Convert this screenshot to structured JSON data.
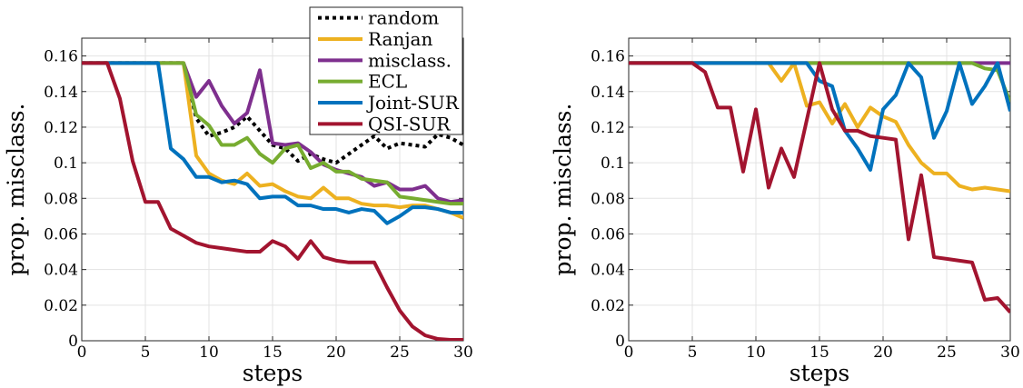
{
  "chart_data": [
    {
      "type": "line",
      "title": "",
      "xlabel": "steps",
      "ylabel": "prop. misclass.",
      "xlim": [
        0,
        30
      ],
      "ylim": [
        0,
        0.17
      ],
      "xticks": [
        0,
        5,
        10,
        15,
        20,
        25,
        30
      ],
      "yticks": [
        0,
        0.02,
        0.04,
        0.06,
        0.08,
        0.1,
        0.12,
        0.14,
        0.16
      ],
      "ytick_labels": [
        "0",
        "0.02",
        "0.04",
        "0.06",
        "0.08",
        "0.1",
        "0.12",
        "0.14",
        "0.16"
      ],
      "grid": true,
      "legend_position": "top-right",
      "x": [
        0,
        1,
        2,
        3,
        4,
        5,
        6,
        7,
        8,
        9,
        10,
        11,
        12,
        13,
        14,
        15,
        16,
        17,
        18,
        19,
        20,
        21,
        22,
        23,
        24,
        25,
        26,
        27,
        28,
        29,
        30
      ],
      "series": [
        {
          "name": "random",
          "color": "#000000",
          "dashed": true,
          "values": [
            0.156,
            0.156,
            0.156,
            0.156,
            0.156,
            0.156,
            0.156,
            0.156,
            0.156,
            0.125,
            0.115,
            0.117,
            0.12,
            0.126,
            0.118,
            0.11,
            0.108,
            0.101,
            0.105,
            0.102,
            0.1,
            0.105,
            0.11,
            0.115,
            0.108,
            0.111,
            0.11,
            0.109,
            0.116,
            0.114,
            0.11
          ]
        },
        {
          "name": "Ranjan",
          "color": "#EDB120",
          "values": [
            0.156,
            0.156,
            0.156,
            0.156,
            0.156,
            0.156,
            0.156,
            0.156,
            0.156,
            0.104,
            0.094,
            0.09,
            0.088,
            0.094,
            0.087,
            0.088,
            0.084,
            0.081,
            0.08,
            0.086,
            0.08,
            0.08,
            0.077,
            0.076,
            0.076,
            0.075,
            0.076,
            0.076,
            0.074,
            0.072,
            0.069
          ]
        },
        {
          "name": "misclass.",
          "color": "#7E2F8E",
          "values": [
            0.156,
            0.156,
            0.156,
            0.156,
            0.156,
            0.156,
            0.156,
            0.156,
            0.156,
            0.137,
            0.146,
            0.132,
            0.122,
            0.128,
            0.152,
            0.111,
            0.11,
            0.111,
            0.106,
            0.099,
            0.096,
            0.094,
            0.092,
            0.087,
            0.089,
            0.085,
            0.085,
            0.087,
            0.08,
            0.078,
            0.079
          ]
        },
        {
          "name": "ECL",
          "color": "#77AC30",
          "values": [
            0.156,
            0.156,
            0.156,
            0.156,
            0.156,
            0.156,
            0.156,
            0.156,
            0.156,
            0.127,
            0.121,
            0.11,
            0.11,
            0.114,
            0.105,
            0.1,
            0.108,
            0.11,
            0.097,
            0.1,
            0.095,
            0.095,
            0.091,
            0.09,
            0.089,
            0.081,
            0.08,
            0.079,
            0.078,
            0.077,
            0.077
          ]
        },
        {
          "name": "Joint-SUR",
          "color": "#0072BD",
          "values": [
            0.156,
            0.156,
            0.156,
            0.156,
            0.156,
            0.156,
            0.156,
            0.108,
            0.102,
            0.092,
            0.092,
            0.089,
            0.09,
            0.088,
            0.08,
            0.081,
            0.081,
            0.076,
            0.076,
            0.074,
            0.074,
            0.072,
            0.074,
            0.073,
            0.066,
            0.07,
            0.075,
            0.075,
            0.074,
            0.072,
            0.072
          ]
        },
        {
          "name": "QSI-SUR",
          "color": "#A2142F",
          "values": [
            0.156,
            0.156,
            0.156,
            0.136,
            0.101,
            0.078,
            0.078,
            0.063,
            0.059,
            0.055,
            0.053,
            0.052,
            0.051,
            0.05,
            0.05,
            0.056,
            0.053,
            0.046,
            0.056,
            0.047,
            0.045,
            0.044,
            0.044,
            0.044,
            0.03,
            0.017,
            0.008,
            0.003,
            0.001,
            0.0005,
            0.0005
          ]
        }
      ]
    },
    {
      "type": "line",
      "title": "",
      "xlabel": "steps",
      "ylabel": "prop. misclass.",
      "xlim": [
        0,
        30
      ],
      "ylim": [
        0,
        0.17
      ],
      "xticks": [
        0,
        5,
        10,
        15,
        20,
        25,
        30
      ],
      "yticks": [
        0,
        0.02,
        0.04,
        0.06,
        0.08,
        0.1,
        0.12,
        0.14,
        0.16
      ],
      "ytick_labels": [
        "0",
        "0.02",
        "0.04",
        "0.06",
        "0.08",
        "0.1",
        "0.12",
        "0.14",
        "0.16"
      ],
      "grid": true,
      "x": [
        0,
        1,
        2,
        3,
        4,
        5,
        6,
        7,
        8,
        9,
        10,
        11,
        12,
        13,
        14,
        15,
        16,
        17,
        18,
        19,
        20,
        21,
        22,
        23,
        24,
        25,
        26,
        27,
        28,
        29,
        30
      ],
      "series": [
        {
          "name": "Ranjan",
          "color": "#EDB120",
          "values": [
            0.156,
            0.156,
            0.156,
            0.156,
            0.156,
            0.156,
            0.156,
            0.156,
            0.156,
            0.156,
            0.156,
            0.156,
            0.146,
            0.156,
            0.132,
            0.134,
            0.122,
            0.133,
            0.12,
            0.131,
            0.126,
            0.123,
            0.11,
            0.1,
            0.094,
            0.094,
            0.087,
            0.085,
            0.086,
            0.085,
            0.084
          ]
        },
        {
          "name": "misclass.",
          "color": "#7E2F8E",
          "values": [
            0.156,
            0.156,
            0.156,
            0.156,
            0.156,
            0.156,
            0.156,
            0.156,
            0.156,
            0.156,
            0.156,
            0.156,
            0.156,
            0.156,
            0.156,
            0.156,
            0.156,
            0.156,
            0.156,
            0.156,
            0.156,
            0.156,
            0.156,
            0.156,
            0.156,
            0.156,
            0.156,
            0.156,
            0.156,
            0.156,
            0.156
          ]
        },
        {
          "name": "ECL",
          "color": "#77AC30",
          "values": [
            0.156,
            0.156,
            0.156,
            0.156,
            0.156,
            0.156,
            0.156,
            0.156,
            0.156,
            0.156,
            0.156,
            0.156,
            0.156,
            0.156,
            0.156,
            0.156,
            0.156,
            0.156,
            0.156,
            0.156,
            0.156,
            0.156,
            0.156,
            0.156,
            0.156,
            0.156,
            0.156,
            0.156,
            0.153,
            0.152,
            0.134
          ]
        },
        {
          "name": "Joint-SUR",
          "color": "#0072BD",
          "values": [
            0.156,
            0.156,
            0.156,
            0.156,
            0.156,
            0.156,
            0.156,
            0.156,
            0.156,
            0.156,
            0.156,
            0.156,
            0.156,
            0.156,
            0.156,
            0.146,
            0.143,
            0.118,
            0.108,
            0.096,
            0.13,
            0.138,
            0.156,
            0.148,
            0.114,
            0.129,
            0.156,
            0.133,
            0.143,
            0.156,
            0.129
          ]
        },
        {
          "name": "QSI-SUR",
          "color": "#A2142F",
          "values": [
            0.156,
            0.156,
            0.156,
            0.156,
            0.156,
            0.156,
            0.151,
            0.131,
            0.131,
            0.095,
            0.13,
            0.086,
            0.108,
            0.092,
            0.124,
            0.156,
            0.13,
            0.118,
            0.118,
            0.115,
            0.114,
            0.113,
            0.057,
            0.093,
            0.047,
            0.046,
            0.045,
            0.044,
            0.023,
            0.024,
            0.016
          ]
        }
      ]
    }
  ]
}
